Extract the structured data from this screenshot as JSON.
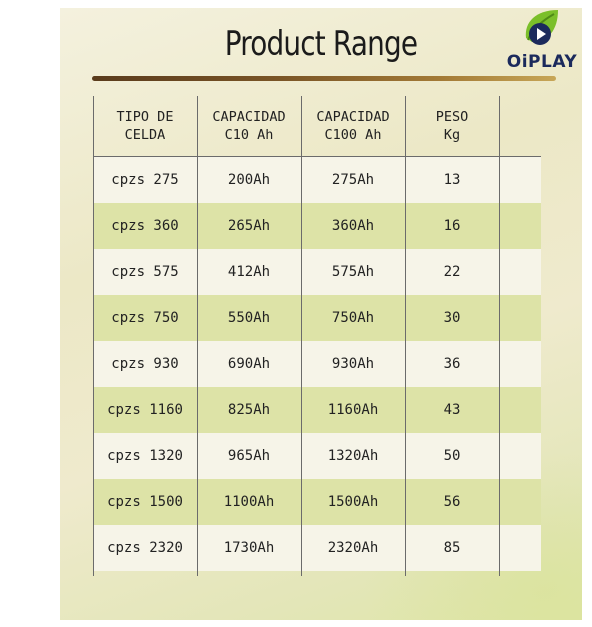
{
  "title": "Product Range",
  "logo": {
    "text": "OiPLAY",
    "icon": "play-leaf-icon",
    "colors": {
      "leaf": "#7bbf2a",
      "play": "#1b2a5c"
    }
  },
  "table": {
    "headers": [
      "TIPO DE\nCELDA",
      "CAPACIDAD\nC10 Ah",
      "CAPACIDAD\nC100 Ah",
      "PESO\nKg"
    ],
    "rows": [
      [
        "cpzs 275",
        "200Ah",
        "275Ah",
        "13"
      ],
      [
        "cpzs 360",
        "265Ah",
        "360Ah",
        "16"
      ],
      [
        "cpzs 575",
        "412Ah",
        "575Ah",
        "22"
      ],
      [
        "cpzs 750",
        "550Ah",
        "750Ah",
        "30"
      ],
      [
        "cpzs 930",
        "690Ah",
        "930Ah",
        "36"
      ],
      [
        "cpzs 1160",
        "825Ah",
        "1160Ah",
        "43"
      ],
      [
        "cpzs 1320",
        "965Ah",
        "1320Ah",
        "50"
      ],
      [
        "cpzs 1500",
        "1100Ah",
        "1500Ah",
        "56"
      ],
      [
        "cpzs 2320",
        "1730Ah",
        "2320Ah",
        "85"
      ]
    ]
  },
  "colors": {
    "stripe": "#dde3a7",
    "rule_start": "#5a3b1c",
    "rule_end": "#c7a657"
  }
}
